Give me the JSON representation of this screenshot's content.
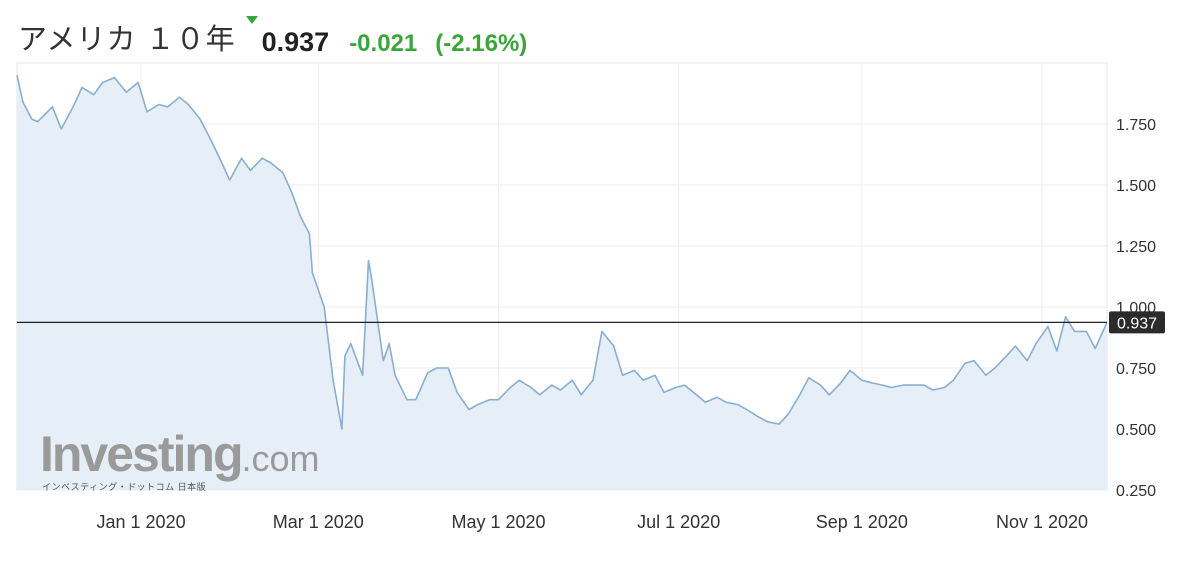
{
  "header": {
    "title": "アメリカ １０年",
    "price": "0.937",
    "change": "-0.021",
    "change_pct": "(-2.16%)",
    "arrow_icon": "triangle-down-icon",
    "positive_color": "#3aa63a"
  },
  "watermark": {
    "brand": "Investing",
    "suffix": ".com",
    "sub": "インベスティング・ドットコム 日本版"
  },
  "chart_data": {
    "type": "area",
    "current_value": 0.937,
    "current_label": "0.937",
    "x_tick_labels": [
      "Jan 1 2020",
      "Mar 1 2020",
      "May 1 2020",
      "Jul 1 2020",
      "Sep 1 2020",
      "Nov 1 2020"
    ],
    "x_tick_dates": [
      "2020-01-01",
      "2020-03-01",
      "2020-05-01",
      "2020-07-01",
      "2020-09-01",
      "2020-11-01"
    ],
    "x_range": [
      "2019-11-20",
      "2020-11-23"
    ],
    "y_ticks": [
      0.25,
      0.5,
      0.75,
      1.0,
      1.25,
      1.5,
      1.75
    ],
    "y_tick_labels": [
      "0.250",
      "0.500",
      "0.750",
      "1.000",
      "1.250",
      "1.500",
      "1.750"
    ],
    "ylim": [
      0.25,
      2.0
    ],
    "grid": true,
    "line_color": "#8aaed0",
    "fill_color": "#e6eef7",
    "series": [
      {
        "x": [
          "2019-11-20",
          "2019-11-22",
          "2019-11-25",
          "2019-11-27",
          "2019-12-02",
          "2019-12-05",
          "2019-12-09",
          "2019-12-12",
          "2019-12-16",
          "2019-12-19",
          "2019-12-23",
          "2019-12-27",
          "2019-12-31",
          "2020-01-03",
          "2020-01-07",
          "2020-01-10",
          "2020-01-14",
          "2020-01-17",
          "2020-01-21",
          "2020-01-24",
          "2020-01-28",
          "2020-01-31",
          "2020-02-04",
          "2020-02-07",
          "2020-02-11",
          "2020-02-14",
          "2020-02-18",
          "2020-02-21",
          "2020-02-24",
          "2020-02-27",
          "2020-02-28",
          "2020-03-03",
          "2020-03-06",
          "2020-03-09",
          "2020-03-10",
          "2020-03-12",
          "2020-03-16",
          "2020-03-18",
          "2020-03-19",
          "2020-03-23",
          "2020-03-25",
          "2020-03-27",
          "2020-03-31",
          "2020-04-03",
          "2020-04-07",
          "2020-04-10",
          "2020-04-14",
          "2020-04-17",
          "2020-04-21",
          "2020-04-24",
          "2020-04-28",
          "2020-05-01",
          "2020-05-05",
          "2020-05-08",
          "2020-05-12",
          "2020-05-15",
          "2020-05-19",
          "2020-05-22",
          "2020-05-26",
          "2020-05-29",
          "2020-06-02",
          "2020-06-05",
          "2020-06-09",
          "2020-06-12",
          "2020-06-16",
          "2020-06-19",
          "2020-06-23",
          "2020-06-26",
          "2020-06-30",
          "2020-07-03",
          "2020-07-07",
          "2020-07-10",
          "2020-07-14",
          "2020-07-17",
          "2020-07-21",
          "2020-07-24",
          "2020-07-28",
          "2020-07-31",
          "2020-08-04",
          "2020-08-07",
          "2020-08-11",
          "2020-08-14",
          "2020-08-18",
          "2020-08-21",
          "2020-08-25",
          "2020-08-28",
          "2020-09-01",
          "2020-09-04",
          "2020-09-08",
          "2020-09-11",
          "2020-09-15",
          "2020-09-18",
          "2020-09-22",
          "2020-09-25",
          "2020-09-29",
          "2020-10-02",
          "2020-10-06",
          "2020-10-09",
          "2020-10-13",
          "2020-10-16",
          "2020-10-20",
          "2020-10-23",
          "2020-10-27",
          "2020-10-30",
          "2020-11-03",
          "2020-11-06",
          "2020-11-09",
          "2020-11-12",
          "2020-11-16",
          "2020-11-19",
          "2020-11-23"
        ],
        "y": [
          1.95,
          1.84,
          1.77,
          1.76,
          1.82,
          1.73,
          1.82,
          1.9,
          1.87,
          1.92,
          1.94,
          1.88,
          1.92,
          1.8,
          1.83,
          1.82,
          1.86,
          1.83,
          1.77,
          1.7,
          1.6,
          1.52,
          1.61,
          1.56,
          1.61,
          1.59,
          1.55,
          1.47,
          1.37,
          1.3,
          1.14,
          1.0,
          0.7,
          0.5,
          0.8,
          0.85,
          0.72,
          1.19,
          1.12,
          0.78,
          0.85,
          0.72,
          0.62,
          0.62,
          0.73,
          0.75,
          0.75,
          0.65,
          0.58,
          0.6,
          0.62,
          0.62,
          0.67,
          0.7,
          0.67,
          0.64,
          0.68,
          0.66,
          0.7,
          0.64,
          0.7,
          0.9,
          0.84,
          0.72,
          0.74,
          0.7,
          0.72,
          0.65,
          0.67,
          0.68,
          0.64,
          0.61,
          0.63,
          0.61,
          0.6,
          0.58,
          0.55,
          0.53,
          0.52,
          0.56,
          0.64,
          0.71,
          0.68,
          0.64,
          0.69,
          0.74,
          0.7,
          0.69,
          0.68,
          0.67,
          0.68,
          0.68,
          0.68,
          0.66,
          0.67,
          0.7,
          0.77,
          0.78,
          0.72,
          0.75,
          0.8,
          0.84,
          0.78,
          0.85,
          0.92,
          0.82,
          0.96,
          0.9,
          0.9,
          0.83,
          0.937
        ]
      }
    ]
  }
}
